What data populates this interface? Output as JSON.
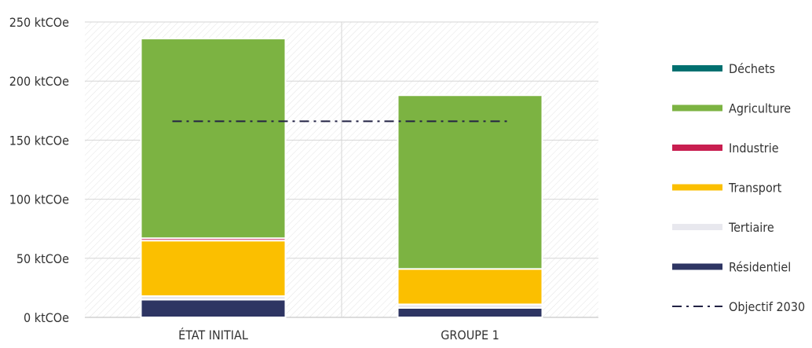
{
  "chart_data": {
    "type": "bar",
    "stacked": true,
    "categories": [
      "ÉTAT INITIAL",
      "GROUPE 1"
    ],
    "y_ticks": [
      "0 ktCOe",
      "50 ktCOe",
      "100 ktCOe",
      "150 ktCOe",
      "200 ktCOe",
      "250 ktCOe"
    ],
    "ylim": [
      0,
      250
    ],
    "grid": true,
    "legend_position": "right",
    "series": [
      {
        "name": "Résidentiel",
        "color": "#2e3563",
        "values": [
          15,
          8
        ]
      },
      {
        "name": "Tertiaire",
        "color": "#e8e8ee",
        "values": [
          3,
          3
        ]
      },
      {
        "name": "Transport",
        "color": "#fbbf00",
        "values": [
          47,
          30
        ]
      },
      {
        "name": "Industrie",
        "color": "#c81e50",
        "values": [
          2,
          0
        ]
      },
      {
        "name": "Agriculture",
        "color": "#7cb342",
        "values": [
          169,
          147
        ]
      },
      {
        "name": "Déchets",
        "color": "#007070",
        "values": [
          0,
          0
        ]
      }
    ],
    "legend_order": [
      "Déchets",
      "Agriculture",
      "Industrie",
      "Transport",
      "Tertiaire",
      "Résidentiel",
      "Objectif 2030"
    ],
    "target_line": {
      "name": "Objectif 2030",
      "value": 166,
      "color": "#222244"
    }
  }
}
